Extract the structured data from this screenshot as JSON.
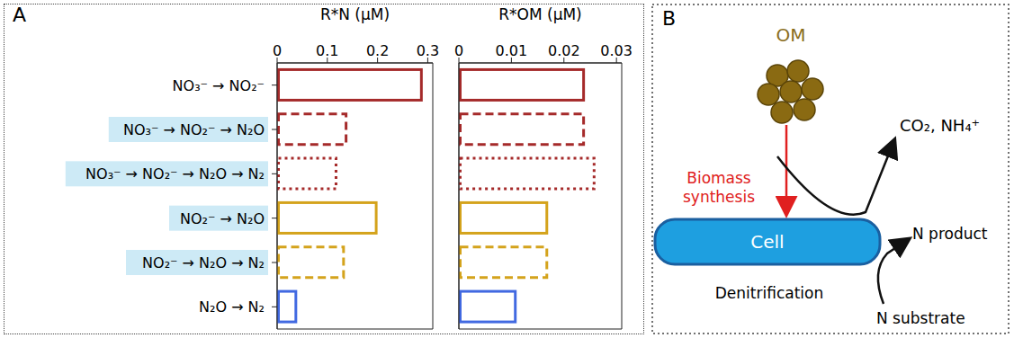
{
  "panel_labels": [
    "A",
    "B"
  ],
  "chart_data": [
    {
      "type": "bar",
      "orientation": "horizontal",
      "x_label": "R*N (μM)",
      "categories": [
        "NO₃⁻ → NO₂⁻",
        "NO₃⁻ → NO₂⁻ → N₂O",
        "NO₃⁻ → NO₂⁻ → N₂O → N₂",
        "NO₂⁻ → N₂O",
        "NO₂⁻ → N₂O → N₂",
        "N₂O → N₂"
      ],
      "values": [
        0.29,
        0.14,
        0.12,
        0.2,
        0.135,
        0.04
      ],
      "colors": [
        "#a52a2a",
        "#a52a2a",
        "#a52a2a",
        "#d4a31c",
        "#d4a31c",
        "#4169e1"
      ],
      "line_style": [
        "solid",
        "dashed",
        "dotted",
        "solid",
        "dashed",
        "solid"
      ],
      "xlim": [
        0,
        0.31
      ],
      "xticks": [
        0,
        0.1,
        0.2,
        0.3
      ]
    },
    {
      "type": "bar",
      "orientation": "horizontal",
      "x_label": "R*OM (μM)",
      "categories": [
        "NO₃⁻ → NO₂⁻",
        "NO₃⁻ → NO₂⁻ → N₂O",
        "NO₃⁻ → NO₂⁻ → N₂O → N₂",
        "NO₂⁻ → N₂O",
        "NO₂⁻ → N₂O → N₂",
        "N₂O → N₂"
      ],
      "values": [
        0.024,
        0.024,
        0.026,
        0.017,
        0.017,
        0.011
      ],
      "colors": [
        "#a52a2a",
        "#a52a2a",
        "#a52a2a",
        "#d4a31c",
        "#d4a31c",
        "#4169e1"
      ],
      "line_style": [
        "solid",
        "dashed",
        "dotted",
        "solid",
        "dashed",
        "solid"
      ],
      "xlim": [
        0,
        0.031
      ],
      "xticks": [
        0,
        0.01,
        0.02,
        0.03
      ],
      "tick_labels": "x"
    }
  ],
  "diagram": {
    "om_label": "OM",
    "arrow_label": "Biomass synthesis",
    "cell_label": "Cell",
    "products_label": "CO₂, NH₄⁺",
    "n_product": "N product",
    "n_substrate": "N substrate",
    "process_label": "Denitrification"
  }
}
